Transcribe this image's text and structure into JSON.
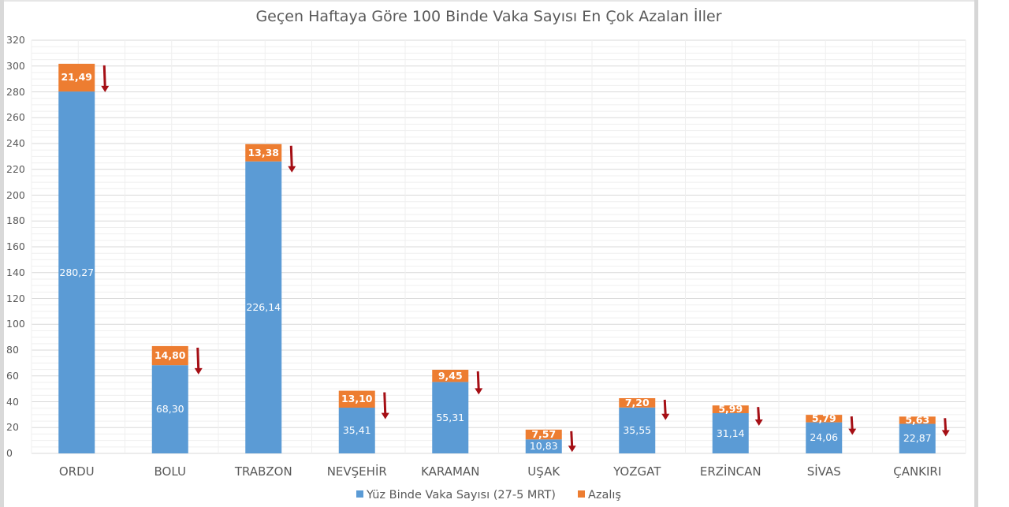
{
  "chart_data": {
    "type": "bar",
    "stacked": true,
    "title": "Geçen Haftaya Göre 100 Binde Vaka Sayısı En Çok Azalan İller",
    "xlabel": "",
    "ylabel": "",
    "ylim": [
      0,
      320
    ],
    "yticks": [
      0,
      20,
      40,
      60,
      80,
      100,
      120,
      140,
      160,
      180,
      200,
      220,
      240,
      260,
      280,
      300,
      320
    ],
    "grid": true,
    "legend_position": "bottom",
    "categories": [
      "ORDU",
      "BOLU",
      "TRABZON",
      "NEVŞEHİR",
      "KARAMAN",
      "UŞAK",
      "YOZGAT",
      "ERZİNCAN",
      "SİVAS",
      "ÇANKIRI"
    ],
    "series": [
      {
        "name": "Yüz Binde Vaka Sayısı (27-5 MRT)",
        "color": "#5b9bd5",
        "values": [
          280.27,
          68.3,
          226.14,
          35.41,
          55.31,
          10.83,
          35.55,
          31.14,
          24.06,
          22.87
        ],
        "labels": [
          "280,27",
          "68,30",
          "226,14",
          "35,41",
          "55,31",
          "10,83",
          "35,55",
          "31,14",
          "24,06",
          "22,87"
        ]
      },
      {
        "name": "Azalış",
        "color": "#ed7d31",
        "values": [
          21.49,
          14.8,
          13.38,
          13.1,
          9.45,
          7.57,
          7.2,
          5.99,
          5.79,
          5.63
        ],
        "labels": [
          "21,49",
          "14,80",
          "13,38",
          "13,10",
          "9,45",
          "7,57",
          "7,20",
          "5,99",
          "5,79",
          "5,63"
        ]
      }
    ],
    "annotations": "Dark red down-arrow next to each bar indicating decrease"
  },
  "colors": {
    "primary_series": "#5b9bd5",
    "secondary_series": "#ed7d31",
    "arrow": "#a50f15",
    "grid_major": "#d9d9d9",
    "grid_minor": "#efefef",
    "text": "#595959"
  },
  "legend": {
    "items": [
      {
        "label": "Yüz Binde Vaka Sayısı (27-5 MRT)",
        "color": "#5b9bd5"
      },
      {
        "label": "Azalış",
        "color": "#ed7d31"
      }
    ]
  }
}
